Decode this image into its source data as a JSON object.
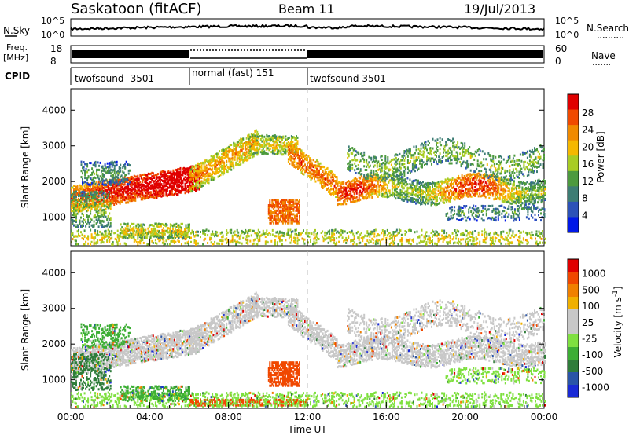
{
  "header": {
    "station": "Saskatoon (fitACF)",
    "beam": "Beam 11",
    "date": "19/Jul/2013"
  },
  "top_panels": {
    "nsky_label": "N.Sky",
    "nsky_ticks": [
      "10^5",
      "10^0"
    ],
    "nsearch_label": "N.Search",
    "freq_label": "Freq.",
    "freq_unit": "[MHz]",
    "freq_ticks": [
      "18",
      "8"
    ],
    "nave_label": "Nave",
    "nave_ticks": [
      "60",
      "0"
    ],
    "cpid_label": "CPID",
    "cpid_segments": [
      {
        "label": "twofsound -3501",
        "start_hour": 0,
        "end_hour": 6
      },
      {
        "label": "normal (fast) 151",
        "start_hour": 6,
        "end_hour": 12
      },
      {
        "label": "twofsound 3501",
        "start_hour": 12,
        "end_hour": 24
      }
    ]
  },
  "chart_data": [
    {
      "type": "heatmap",
      "title": "",
      "xlabel": "",
      "ylabel": "Slant Range [km]",
      "xlim": [
        0,
        24
      ],
      "ylim": [
        200,
        4600
      ],
      "yticks": [
        1000,
        2000,
        3000,
        4000
      ],
      "colorbar": {
        "label": "Power [dB]",
        "ticks": [
          4,
          8,
          12,
          16,
          20,
          24,
          28
        ],
        "colors": [
          "#0018e8",
          "#2c52b8",
          "#3d7d74",
          "#4d9a3e",
          "#a8cc23",
          "#f5b800",
          "#f08a00",
          "#f04a00",
          "#e00000"
        ]
      }
    },
    {
      "type": "heatmap",
      "title": "",
      "xlabel": "Time UT",
      "ylabel": "Slant Range [km]",
      "xlim": [
        0,
        24
      ],
      "ylim": [
        200,
        4600
      ],
      "yticks": [
        1000,
        2000,
        3000,
        4000
      ],
      "xticks": [
        "00:00",
        "04:00",
        "08:00",
        "12:00",
        "16:00",
        "20:00",
        "00:00"
      ],
      "colorbar": {
        "label": "Velocity [m s^-1]",
        "ticks": [
          "1000",
          "500",
          "100",
          "25",
          "-25",
          "-100",
          "-500",
          "-1000"
        ],
        "colors": [
          "#1a2ad6",
          "#2a55a8",
          "#2f7d3a",
          "#3cae34",
          "#7fe040",
          "#c8c8c8",
          "#c8c8c8",
          "#f0b000",
          "#f08000",
          "#f04800",
          "#e00000"
        ]
      }
    }
  ]
}
